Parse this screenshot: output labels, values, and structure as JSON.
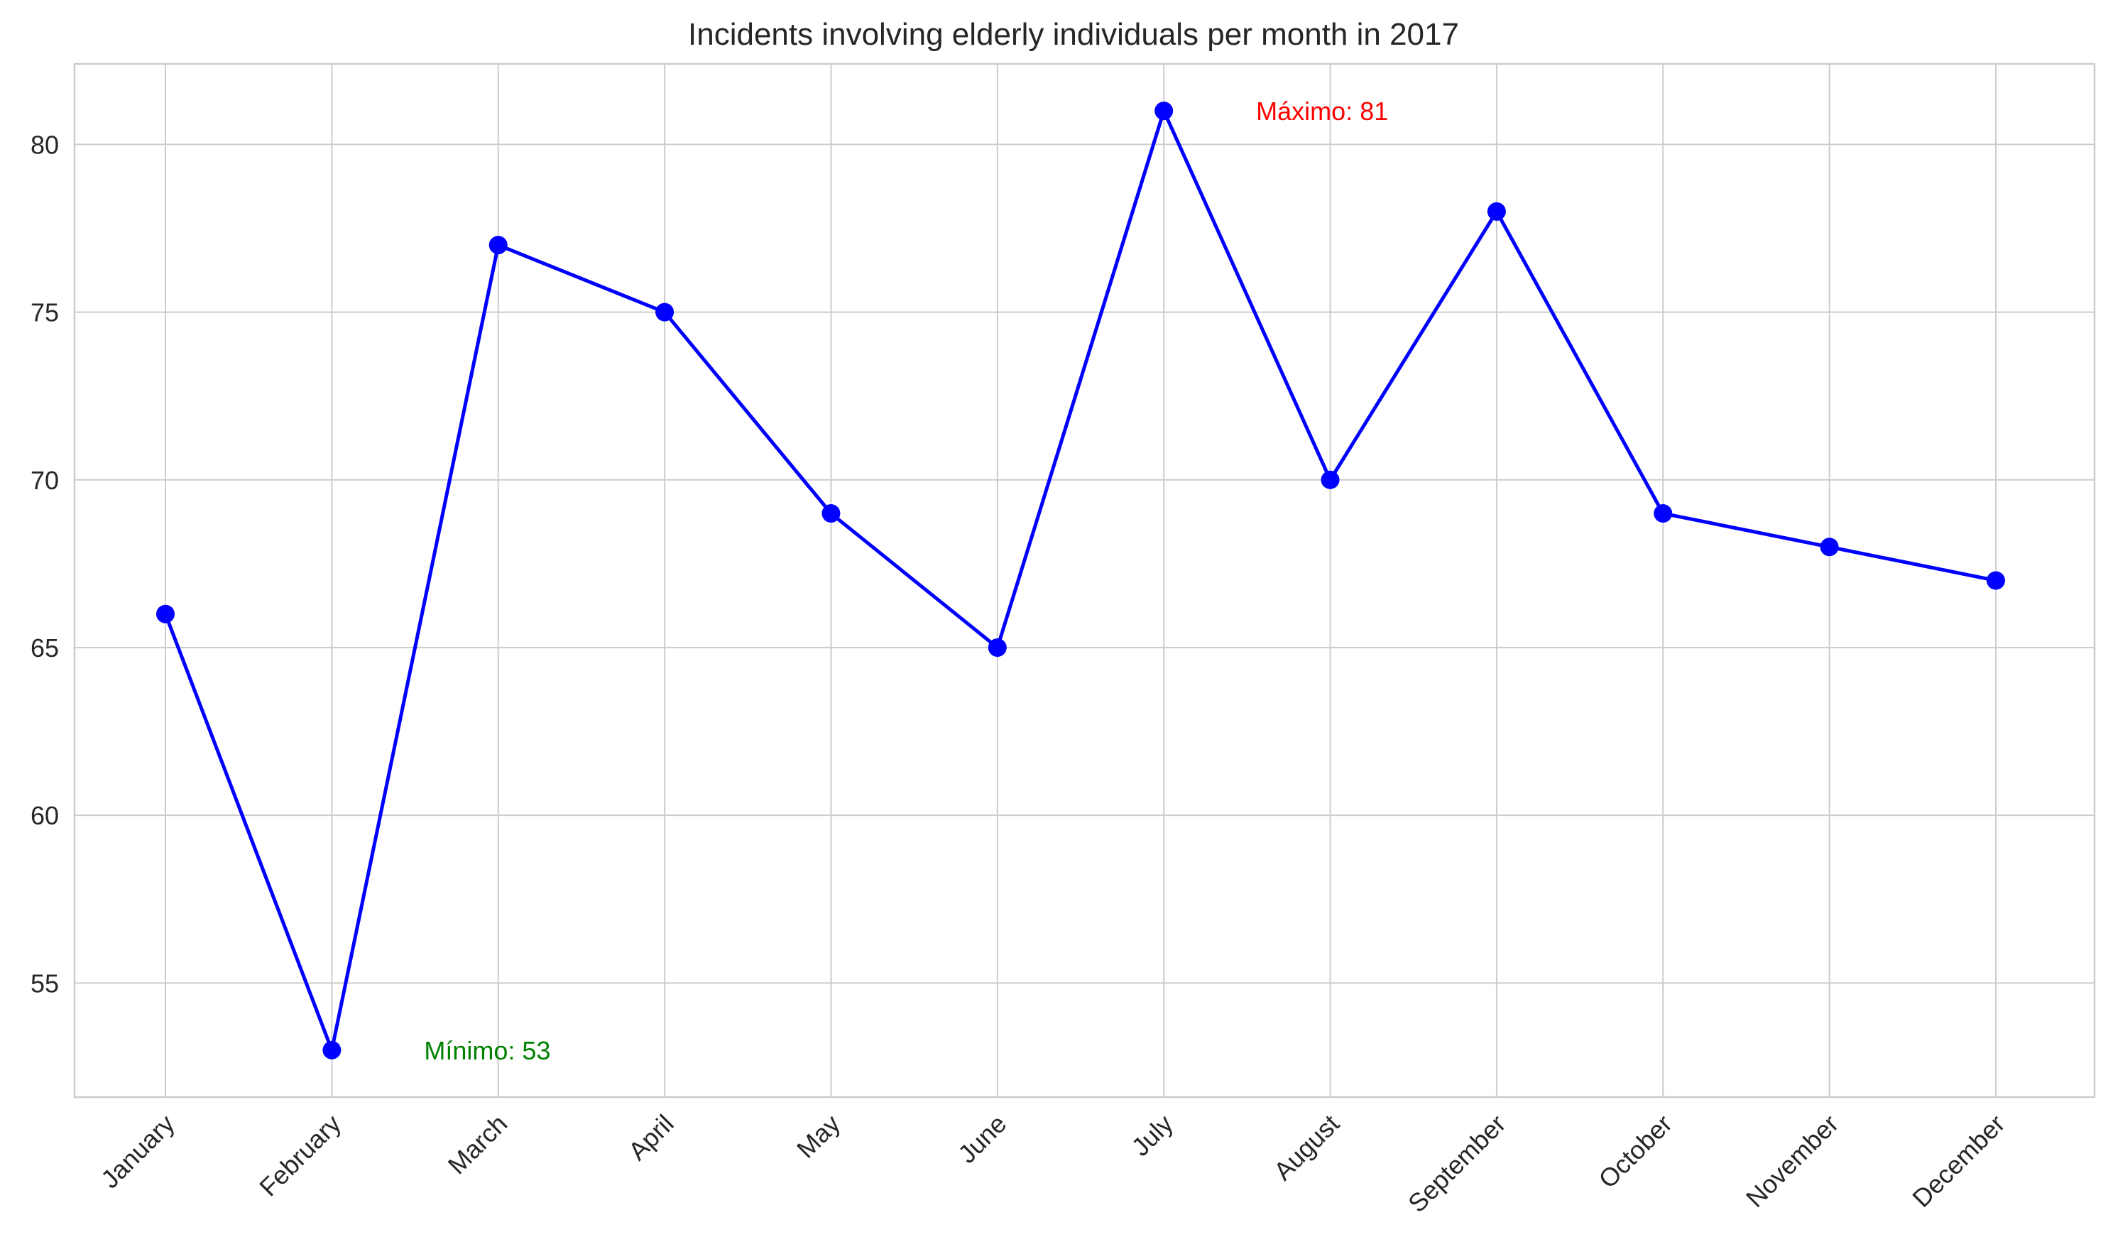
{
  "chart_data": {
    "type": "line",
    "title": "Incidents involving elderly individuals per month in 2017",
    "xlabel": "",
    "ylabel": "",
    "categories": [
      "January",
      "February",
      "March",
      "April",
      "May",
      "June",
      "July",
      "August",
      "September",
      "October",
      "November",
      "December"
    ],
    "series": [
      {
        "values": [
          66,
          53,
          77,
          75,
          69,
          65,
          81,
          70,
          78,
          69,
          68,
          67
        ],
        "color": "#0000ff",
        "marker": "circle"
      }
    ],
    "ylim": [
      51.6,
      82.4
    ],
    "yticks": [
      55,
      60,
      65,
      70,
      75,
      80
    ],
    "grid": true,
    "legend": "none",
    "annotations": [
      {
        "text": "Mínimo: 53",
        "x": "February",
        "y": 53,
        "color": "#008000"
      },
      {
        "text": "Máximo: 81",
        "x": "July",
        "y": 81,
        "color": "#ff0000"
      }
    ],
    "colors": {
      "grid": "#cccccc",
      "axes_edge": "#cccccc",
      "text": "#262626"
    }
  }
}
